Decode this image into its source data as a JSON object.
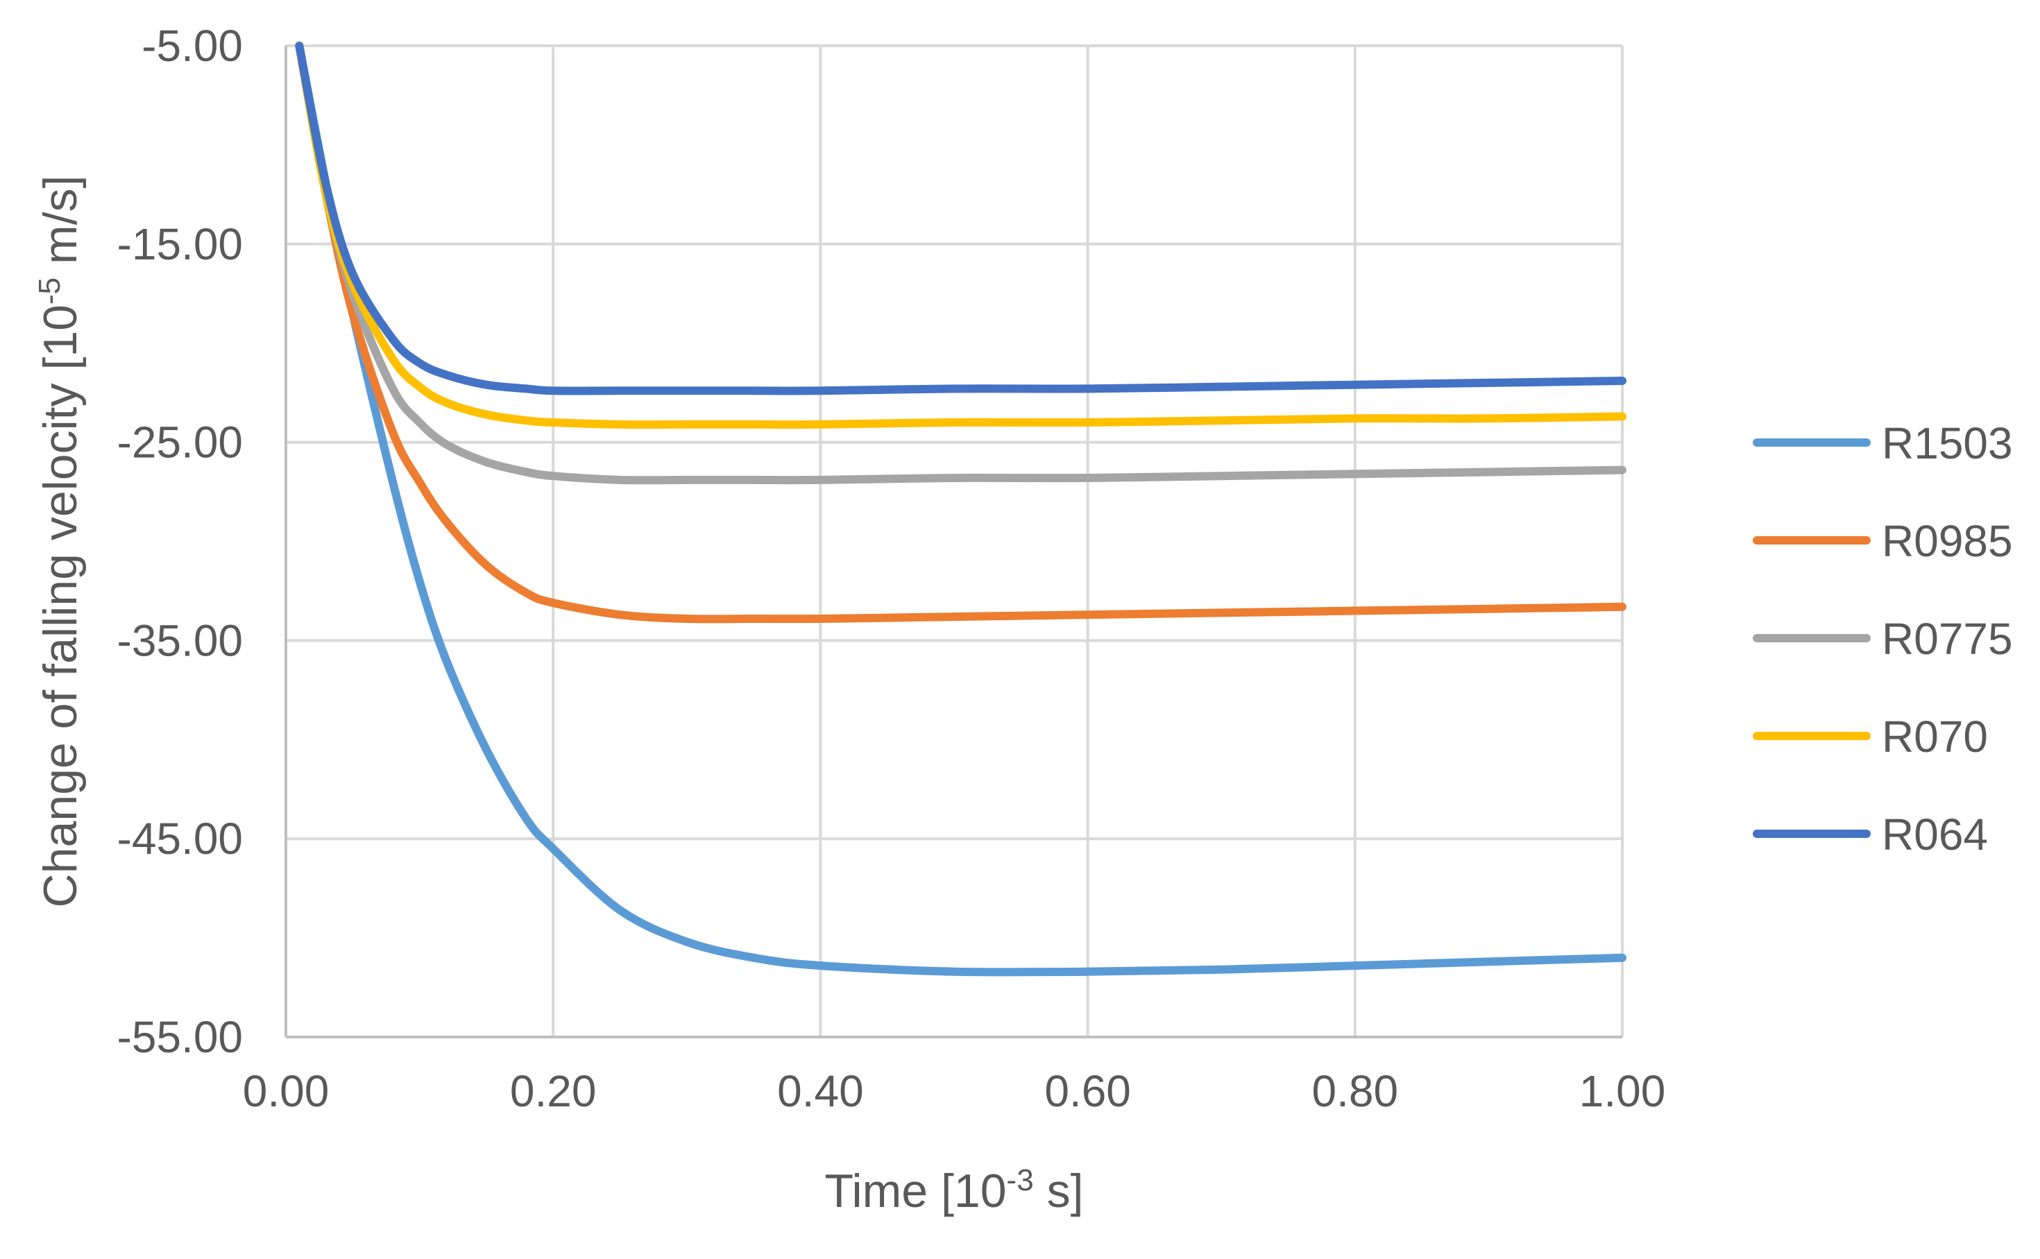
{
  "chart_data": {
    "type": "line",
    "title": "",
    "xlabel": {
      "prefix": "Time [10",
      "exponent": "-3",
      "suffix": " s]"
    },
    "ylabel": {
      "prefix": "Change of falling velocity [10",
      "exponent": "-5",
      "suffix": " m/s]"
    },
    "xlim": [
      0,
      1
    ],
    "ylim": [
      -55,
      -5
    ],
    "xticks": [
      "0.00",
      "0.20",
      "0.40",
      "0.60",
      "0.80",
      "1.00"
    ],
    "xtick_values": [
      0,
      0.2,
      0.4,
      0.6,
      0.8,
      1.0
    ],
    "yticks": [
      "-5.00",
      "-15.00",
      "-25.00",
      "-35.00",
      "-45.00",
      "-55.00"
    ],
    "ytick_values": [
      -5,
      -15,
      -25,
      -35,
      -45,
      -55
    ],
    "grid": true,
    "legend_position": "right",
    "x": [
      0.01,
      0.03,
      0.05,
      0.08,
      0.1,
      0.12,
      0.15,
      0.18,
      0.2,
      0.25,
      0.3,
      0.35,
      0.4,
      0.5,
      0.6,
      0.7,
      0.8,
      0.9,
      1.0
    ],
    "series": [
      {
        "name": "R1503",
        "color": "#5b9bd5",
        "values": [
          -5.0,
          -12.0,
          -18.5,
          -27.0,
          -32.0,
          -36.0,
          -40.5,
          -44.0,
          -45.5,
          -48.6,
          -50.2,
          -51.0,
          -51.4,
          -51.7,
          -51.7,
          -51.6,
          -51.4,
          -51.2,
          -51.0
        ]
      },
      {
        "name": "R0985",
        "color": "#ed7d31",
        "values": [
          -5.0,
          -12.5,
          -18.5,
          -24.5,
          -27.0,
          -29.0,
          -31.2,
          -32.6,
          -33.1,
          -33.7,
          -33.9,
          -33.9,
          -33.9,
          -33.8,
          -33.7,
          -33.6,
          -33.5,
          -33.4,
          -33.3
        ]
      },
      {
        "name": "R0775",
        "color": "#a5a5a5",
        "values": [
          -5.0,
          -12.5,
          -17.5,
          -22.3,
          -24.0,
          -25.1,
          -26.0,
          -26.5,
          -26.7,
          -26.9,
          -26.9,
          -26.9,
          -26.9,
          -26.8,
          -26.8,
          -26.7,
          -26.6,
          -26.5,
          -26.4
        ]
      },
      {
        "name": "R070",
        "color": "#ffc000",
        "values": [
          -5.0,
          -12.5,
          -17.0,
          -20.8,
          -22.2,
          -23.0,
          -23.6,
          -23.9,
          -24.0,
          -24.1,
          -24.1,
          -24.1,
          -24.1,
          -24.0,
          -24.0,
          -23.9,
          -23.8,
          -23.8,
          -23.7
        ]
      },
      {
        "name": "R064",
        "color": "#4472c4",
        "values": [
          -5.0,
          -12.0,
          -16.5,
          -19.8,
          -21.0,
          -21.6,
          -22.1,
          -22.3,
          -22.4,
          -22.4,
          -22.4,
          -22.4,
          -22.4,
          -22.3,
          -22.3,
          -22.2,
          -22.1,
          -22.0,
          -21.9
        ]
      }
    ]
  }
}
